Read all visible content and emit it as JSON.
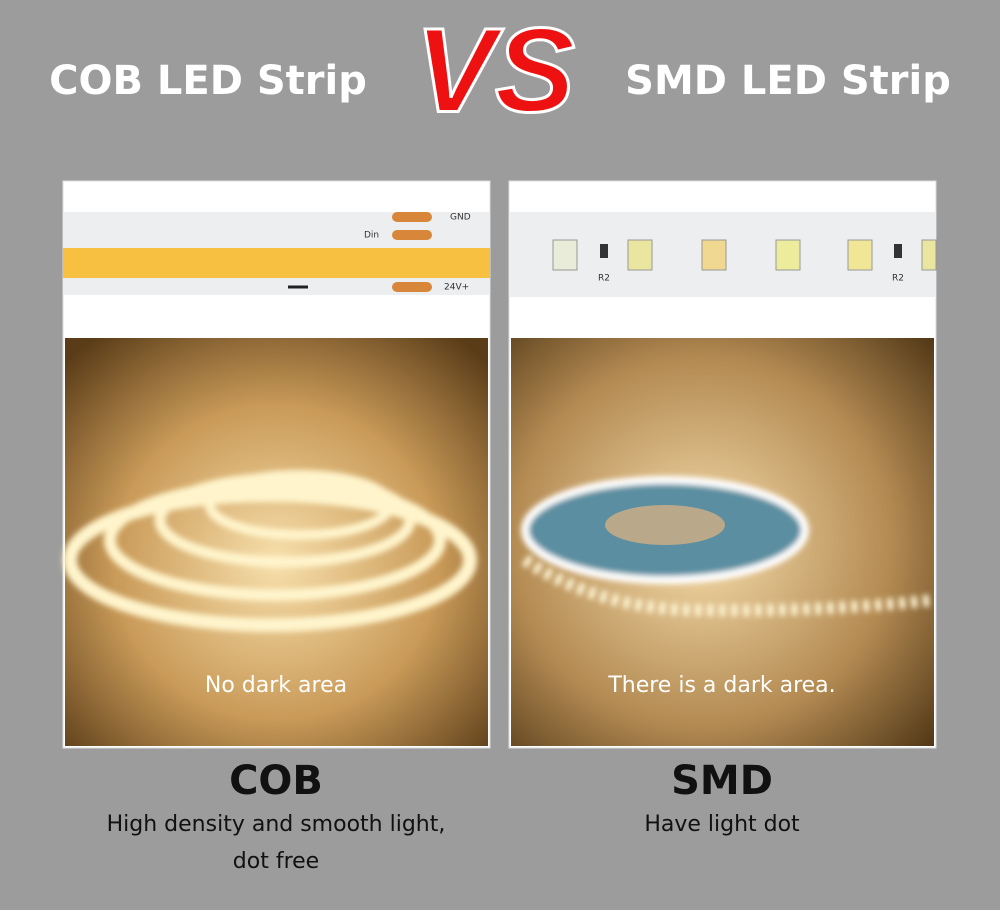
{
  "header": {
    "left_title": "COB LED Strip",
    "vs": "VS",
    "right_title": "SMD LED Strip"
  },
  "panels": [
    {
      "strip_labels": [
        "GND",
        "Din",
        "24V+"
      ],
      "caption": "No dark area",
      "heading": "COB",
      "description": [
        "High density and smooth light,",
        "dot free"
      ]
    },
    {
      "strip_labels": [
        "R2",
        "R2"
      ],
      "caption": "There is a dark area.",
      "heading": "SMD",
      "description": [
        "Have light dot"
      ]
    }
  ]
}
